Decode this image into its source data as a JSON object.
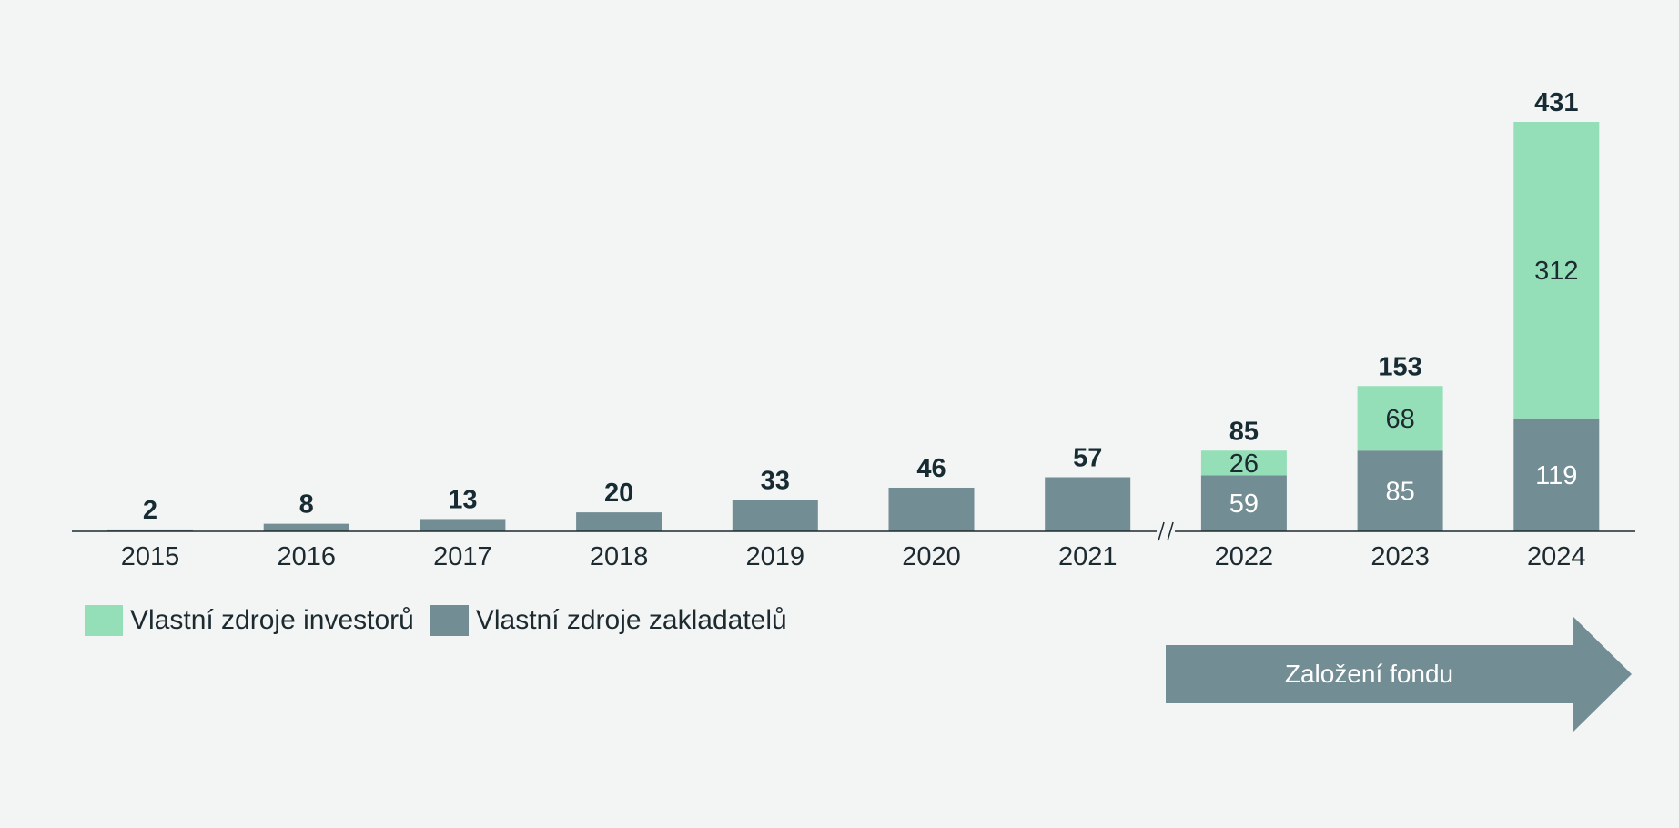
{
  "chart_data": {
    "type": "bar",
    "stacked": true,
    "categories": [
      "2015",
      "2016",
      "2017",
      "2018",
      "2019",
      "2020",
      "2021",
      "2022",
      "2023",
      "2024"
    ],
    "series": [
      {
        "name": "Vlastní zdroje zakladatelů",
        "color": "#738d94",
        "values": [
          2,
          8,
          13,
          20,
          33,
          46,
          57,
          59,
          85,
          119
        ]
      },
      {
        "name": "Vlastní zdroje investorů",
        "color": "#94dfb8",
        "values": [
          0,
          0,
          0,
          0,
          0,
          0,
          0,
          26,
          68,
          312
        ]
      }
    ],
    "totals": [
      2,
      8,
      13,
      20,
      33,
      46,
      57,
      85,
      153,
      431
    ],
    "segment_labels_shown_from": "2022",
    "axis_break_between": [
      "2021",
      "2022"
    ],
    "ylim": [
      0,
      431
    ],
    "grid": false,
    "legend_position": "bottom-left",
    "legend": [
      "Vlastní zdroje investorů",
      "Vlastní zdroje zakladatelů"
    ]
  },
  "annotation": {
    "arrow_label": "Založení fondu",
    "arrow_color": "#738d94"
  },
  "colors": {
    "background": "#f3f5f4",
    "text": "#172b33",
    "founders": "#738d94",
    "investors": "#94dfb8"
  }
}
